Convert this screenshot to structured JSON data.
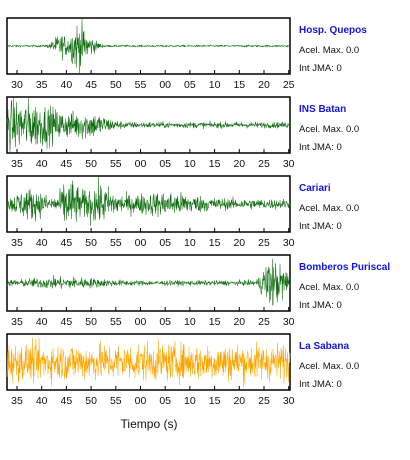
{
  "chart_data": {
    "type": "line",
    "xlabel": "Tiempo (s)",
    "ylabel": "",
    "grid": false,
    "trace_colors": {
      "default": "#0f6e0f",
      "highlight": "#ffa500"
    },
    "panels": [
      {
        "station": "Hosp. Quepos",
        "acel_max": "Acel. Max. 0.0",
        "int_jma": "Int JMA: 0",
        "trace_color": "#0f6e0f",
        "tick_labels": [
          "30",
          "35",
          "40",
          "45",
          "50",
          "55",
          "00",
          "05",
          "10",
          "15",
          "20",
          "25"
        ],
        "features": [
          {
            "t": 0.19,
            "amp": 0.45,
            "w": 0.03
          },
          {
            "t": 0.25,
            "amp": 1.0,
            "w": 0.025
          },
          {
            "t": 0.29,
            "amp": 0.35,
            "w": 0.03
          }
        ],
        "base_noise": 0.04
      },
      {
        "station": "INS Batan",
        "acel_max": "Acel. Max. 0.0",
        "int_jma": "Int JMA: 0",
        "trace_color": "#0f6e0f",
        "tick_labels": [
          "35",
          "40",
          "45",
          "50",
          "55",
          "00",
          "05",
          "10",
          "15",
          "20",
          "25",
          "30"
        ],
        "features": [
          {
            "t": 0.02,
            "amp": 1.0,
            "w": 0.06
          },
          {
            "t": 0.12,
            "amp": 0.7,
            "w": 0.08
          },
          {
            "t": 0.28,
            "amp": 0.45,
            "w": 0.08
          }
        ],
        "base_noise": 0.12
      },
      {
        "station": "Cariari",
        "acel_max": "Acel. Max. 0.0",
        "int_jma": "Int JMA: 0",
        "trace_color": "#0f6e0f",
        "tick_labels": [
          "35",
          "40",
          "45",
          "50",
          "55",
          "00",
          "05",
          "10",
          "15",
          "20",
          "25",
          "30"
        ],
        "features": [
          {
            "t": 0.08,
            "amp": 0.45,
            "w": 0.06
          },
          {
            "t": 0.22,
            "amp": 1.0,
            "w": 0.03
          },
          {
            "t": 0.32,
            "amp": 0.6,
            "w": 0.06
          },
          {
            "t": 0.55,
            "amp": 0.3,
            "w": 0.15
          }
        ],
        "base_noise": 0.2
      },
      {
        "station": "Bomberos Puriscal",
        "acel_max": "Acel. Max. 0.0",
        "int_jma": "Int JMA: 0",
        "trace_color": "#0f6e0f",
        "tick_labels": [
          "35",
          "40",
          "45",
          "50",
          "55",
          "00",
          "05",
          "10",
          "15",
          "20",
          "25",
          "30"
        ],
        "features": [
          {
            "t": 0.2,
            "amp": 0.15,
            "w": 0.15
          },
          {
            "t": 0.93,
            "amp": 1.0,
            "w": 0.03
          },
          {
            "t": 0.98,
            "amp": 0.5,
            "w": 0.03
          }
        ],
        "base_noise": 0.1
      },
      {
        "station": "La Sabana",
        "acel_max": "Acel. Max. 0.0",
        "int_jma": "Int JMA: 0",
        "trace_color": "#ffa500",
        "tick_labels": [
          "35",
          "40",
          "45",
          "50",
          "55",
          "00",
          "05",
          "10",
          "15",
          "20",
          "25",
          "30"
        ],
        "features": [],
        "base_noise": 0.75
      }
    ]
  }
}
